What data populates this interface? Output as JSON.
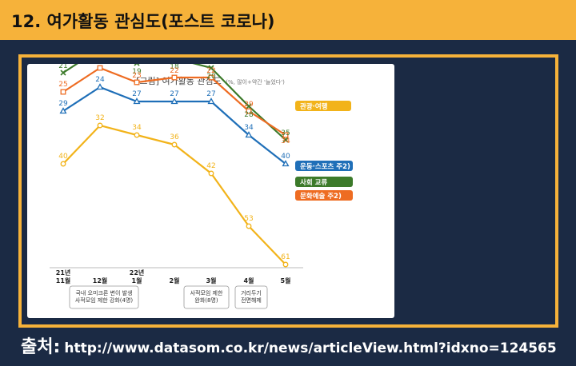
{
  "slide": {
    "title": "12. 여가활동 관심도(포스트 코로나)",
    "source_label": "출처:",
    "source_url": "http://www.datasom.co.kr/news/articleView.html?idxno=124565"
  },
  "chart_data": {
    "type": "line",
    "title": "[그림] 여가활동 관심도",
    "subtitle": "(%, 많이+약간 '늘었다')",
    "categories": [
      "21년\n11월",
      "12월",
      "22년\n1월",
      "2월",
      "3월",
      "4월",
      "5월"
    ],
    "series": [
      {
        "name": "관광·여행",
        "color": "#f2b31a",
        "marker": "circle",
        "values": [
          40,
          32,
          34,
          36,
          42,
          53,
          61
        ]
      },
      {
        "name": "운동·스포츠 주2)",
        "color": "#1f6fb8",
        "marker": "triangle",
        "values": [
          29,
          24,
          27,
          27,
          27,
          34,
          40
        ]
      },
      {
        "name": "사회 교류",
        "color": "#3c7a2a",
        "marker": "x",
        "values": [
          21,
          16,
          19,
          18,
          20,
          28,
          35
        ]
      },
      {
        "name": "문화예술 주2)",
        "color": "#ee6c22",
        "marker": "square",
        "values": [
          25,
          20,
          23,
          22,
          22,
          29,
          34
        ]
      }
    ],
    "annotations": [
      {
        "text": "국내 오미크론 변이 발생\n사적모임 제한 강화(4명)"
      },
      {
        "text": "사적모임 제한\n완화(8명)"
      },
      {
        "text": "거리두기\n전면해제"
      }
    ],
    "ylim": [
      10,
      65
    ],
    "grid": false,
    "legend": "right"
  }
}
